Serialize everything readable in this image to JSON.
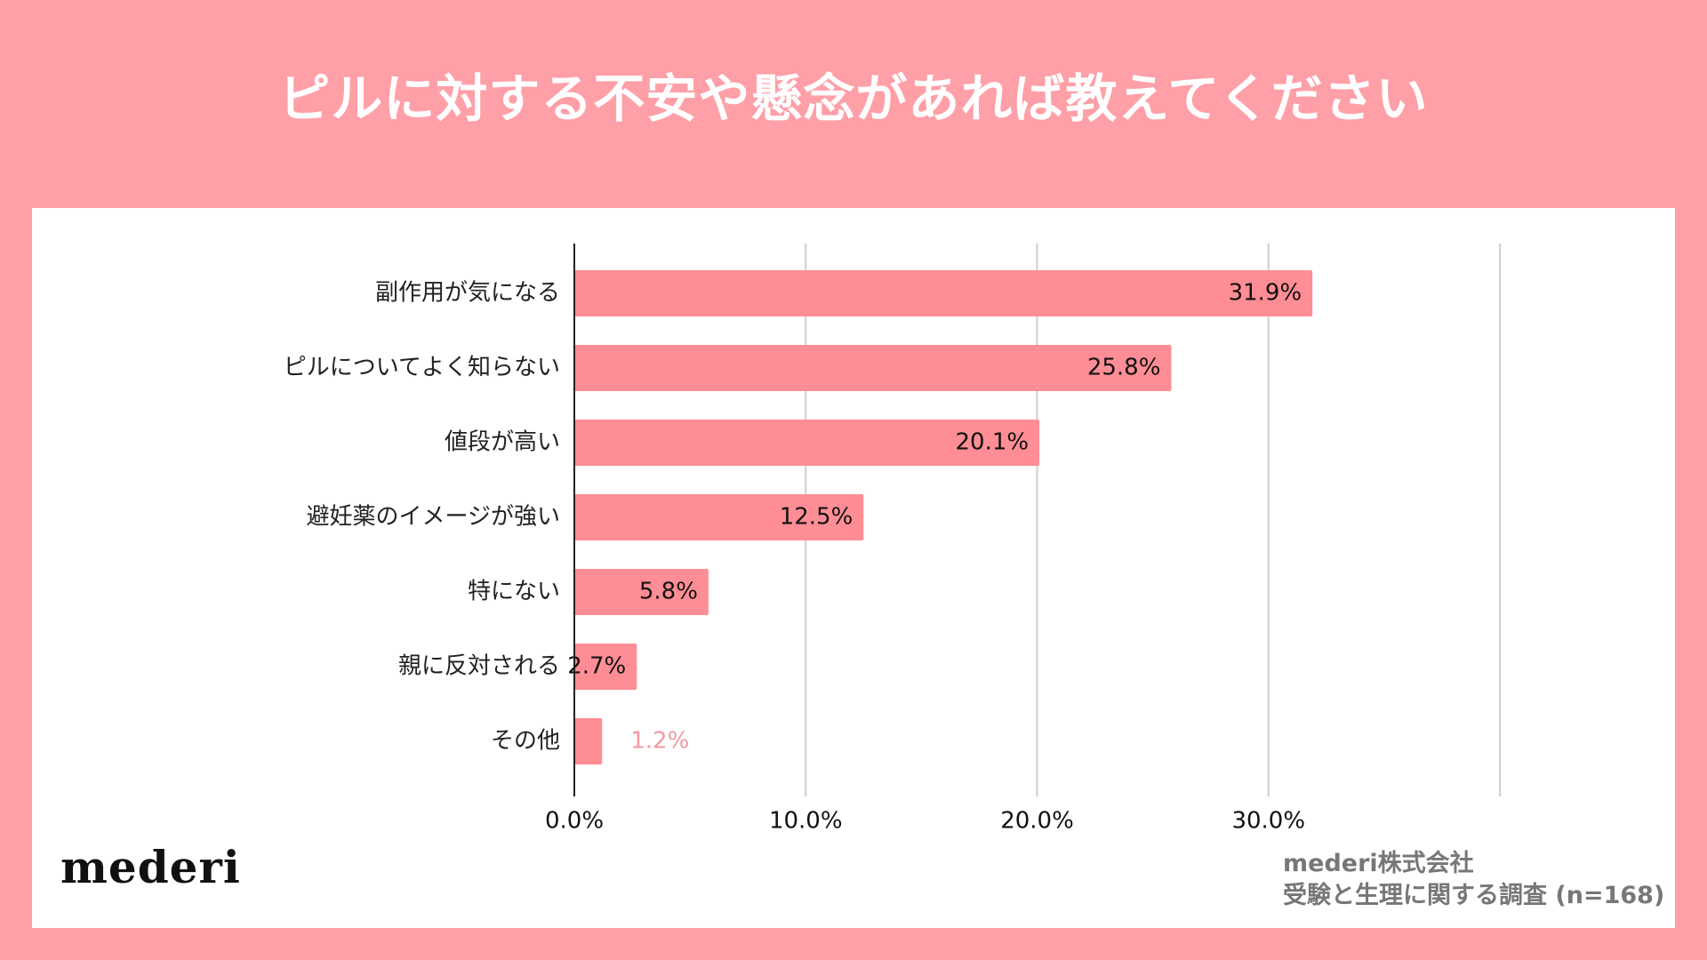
{
  "page": {
    "title": "ピルに対する不安や懸念があれば教えてください",
    "logo": "mederi",
    "credit_company": "mederi株式会社",
    "credit_survey": "受験と生理に関する調査 (n=168)",
    "colors": {
      "background": "#ff9fa7",
      "panel": "#ffffff",
      "bar": "#ff8d95",
      "small_label": "#f19aa4"
    }
  },
  "chart_data": {
    "type": "bar",
    "orientation": "horizontal",
    "title": "",
    "xlabel": "",
    "ylabel": "",
    "categories": [
      "副作用が気になる",
      "ピルについてよく知らない",
      "値段が高い",
      "避妊薬のイメージが強い",
      "特にない",
      "親に反対される",
      "その他"
    ],
    "values": [
      31.9,
      25.8,
      20.1,
      12.5,
      5.8,
      2.7,
      1.2
    ],
    "value_labels": [
      "31.9%",
      "25.8%",
      "20.1%",
      "12.5%",
      "5.8%",
      "2.7%",
      "1.2%"
    ],
    "x_ticks": [
      0,
      10,
      20,
      30
    ],
    "x_tick_labels": [
      "0.0%",
      "10.0%",
      "20.0%",
      "30.0%"
    ],
    "xlim": [
      0,
      40
    ],
    "grid": true,
    "legend": "none"
  }
}
